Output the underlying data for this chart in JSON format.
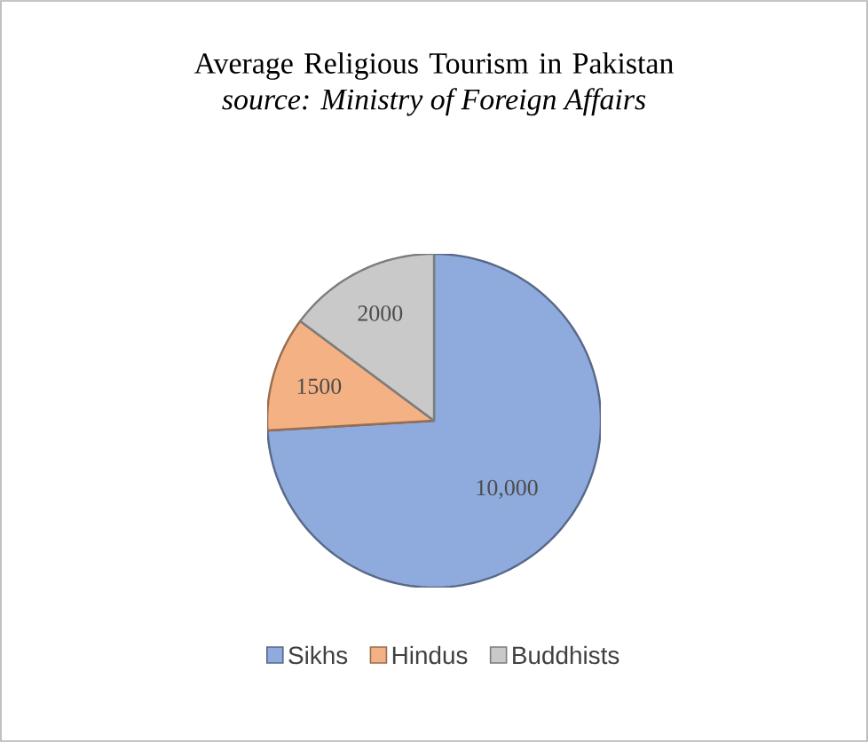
{
  "chart_data": {
    "type": "pie",
    "title": "Average Religious Tourism in Pakistan",
    "subtitle": "source: Ministry of Foreign Affairs",
    "categories": [
      "Sikhs",
      "Hindus",
      "Buddhists"
    ],
    "values": [
      10000,
      1500,
      2000
    ],
    "value_labels": [
      "10,000",
      "1500",
      "2000"
    ],
    "colors": [
      "#8faadc",
      "#f4b183",
      "#c9c9c9"
    ],
    "legend": "bottom"
  }
}
